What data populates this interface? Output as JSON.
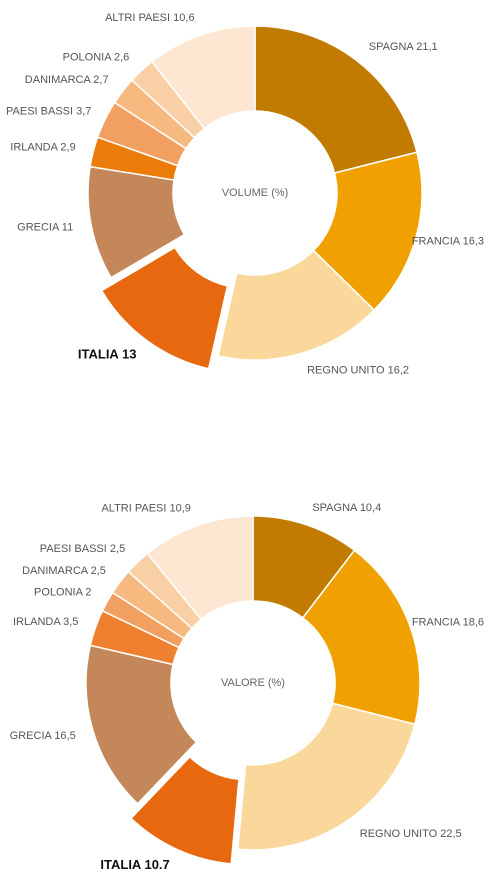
{
  "chart_data": [
    {
      "type": "donut",
      "title": "VOLUME (%)",
      "highlight": "ITALIA",
      "categories": [
        "SPAGNA",
        "FRANCIA",
        "REGNO UNITO",
        "ITALIA",
        "GRECIA",
        "IRLANDA",
        "PAESI BASSI",
        "DANIMARCA",
        "POLONIA",
        "ALTRI PAESI"
      ],
      "values": [
        21.1,
        16.3,
        16.2,
        13,
        11,
        2.9,
        3.7,
        2.7,
        2.6,
        10.6
      ],
      "value_labels": [
        "21,1",
        "16,3",
        "16,2",
        "13",
        "11",
        "2,9",
        "3,7",
        "2,7",
        "2,6",
        "10,6"
      ],
      "colors": [
        "#c17b00",
        "#f0a100",
        "#fad89b",
        "#e8680f",
        "#c4875a",
        "#ec7c0a",
        "#f2a061",
        "#f6ba80",
        "#f9cfa5",
        "#fde7d3"
      ]
    },
    {
      "type": "donut",
      "title": "VALORE (%)",
      "highlight": "ITALIA",
      "categories": [
        "SPAGNA",
        "FRANCIA",
        "REGNO UNITO",
        "ITALIA",
        "GRECIA",
        "IRLANDA",
        "POLONIA",
        "DANIMARCA",
        "PAESI BASSI",
        "ALTRI PAESI"
      ],
      "values": [
        10.4,
        18.6,
        22.5,
        10.7,
        16.5,
        3.5,
        2,
        2.5,
        2.5,
        10.9
      ],
      "value_labels": [
        "10,4",
        "18,6",
        "22,5",
        "10.7",
        "16,5",
        "3,5",
        "2",
        "2,5",
        "2,5",
        "10,9"
      ],
      "colors": [
        "#c17b00",
        "#f0a100",
        "#fad89b",
        "#e8680f",
        "#c4875a",
        "#ee8030",
        "#f2a061",
        "#f6ba80",
        "#f9cfa5",
        "#fde7d3"
      ]
    }
  ]
}
